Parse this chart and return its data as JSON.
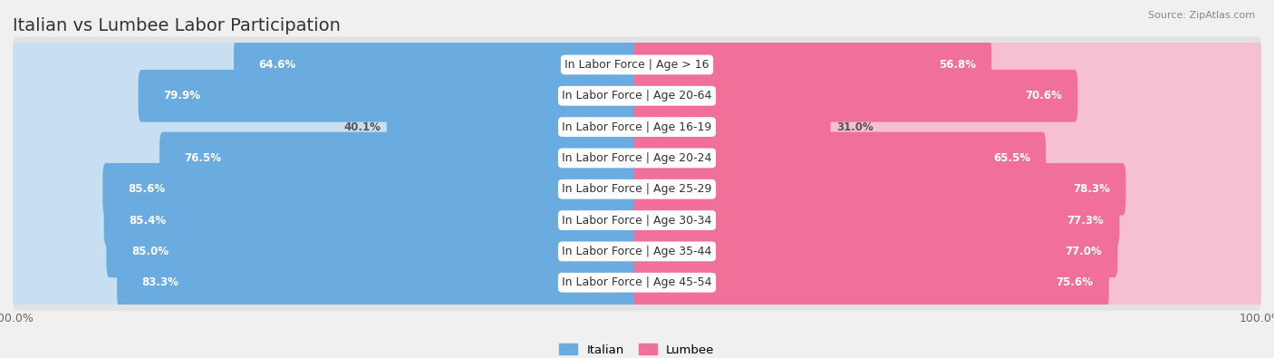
{
  "title": "Italian vs Lumbee Labor Participation",
  "source": "Source: ZipAtlas.com",
  "categories": [
    "In Labor Force | Age > 16",
    "In Labor Force | Age 20-64",
    "In Labor Force | Age 16-19",
    "In Labor Force | Age 20-24",
    "In Labor Force | Age 25-29",
    "In Labor Force | Age 30-34",
    "In Labor Force | Age 35-44",
    "In Labor Force | Age 45-54"
  ],
  "italian_values": [
    64.6,
    79.9,
    40.1,
    76.5,
    85.6,
    85.4,
    85.0,
    83.3
  ],
  "lumbee_values": [
    56.8,
    70.6,
    31.0,
    65.5,
    78.3,
    77.3,
    77.0,
    75.6
  ],
  "italian_color": "#6aabe0",
  "lumbee_color": "#f07099",
  "italian_color_light": "#c8dff2",
  "lumbee_color_light": "#f5c0d0",
  "bg_color": "#f0f0f0",
  "row_bg": "#e8e8e8",
  "bar_height": 0.68,
  "max_value": 100.0,
  "title_fontsize": 14,
  "label_fontsize": 9,
  "value_fontsize": 8.5
}
